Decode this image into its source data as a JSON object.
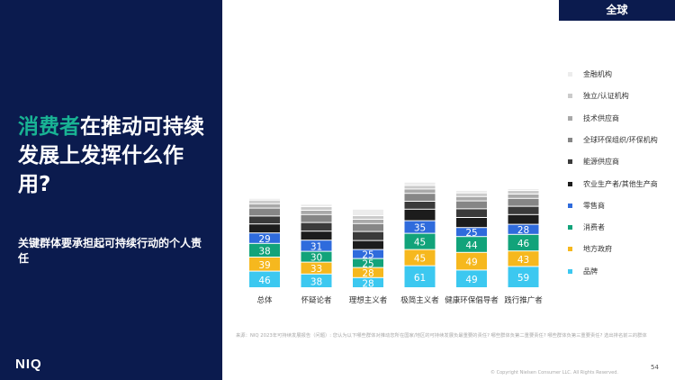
{
  "region": "全球",
  "title": {
    "accent": "消费者",
    "rest": "在推动可持续发展上发挥什么作用?"
  },
  "subtitle": "关键群体要承担起可持续行动的个人责任",
  "logo": "NIQ",
  "footnote": "来源：NIQ 2023年可持续发展报告（问题）: 您认为以下哪些群体对推动您所在国家/地区的可持续发展负最重要的责任? 哪些群体负第二重要责任? 哪些群体负第三重要责任? 选出排名前三的群体",
  "copyright": "© Copyright Nielsen Consumer LLC. All Rights Reserved.",
  "page_number": "54",
  "colors": {
    "brand_navy": "#0b1b4e",
    "accent_green": "#19b394",
    "segments": [
      "#3cc8f0",
      "#f6b81e",
      "#12a37a",
      "#2f6bdc",
      "#1c1c1c",
      "#3a3a3a",
      "#868686",
      "#a9a9a9",
      "#cbcbcb",
      "#ececec"
    ]
  },
  "chart_data": {
    "type": "bar",
    "stacked": true,
    "categories": [
      "总体",
      "怀疑论者",
      "理想主义者",
      "极简主义者",
      "健康环保倡导者",
      "践行推广者"
    ],
    "series": [
      {
        "name": "品牌",
        "values": [
          46,
          38,
          28,
          61,
          49,
          59
        ]
      },
      {
        "name": "地方政府",
        "values": [
          39,
          33,
          28,
          45,
          49,
          43
        ]
      },
      {
        "name": "消费者",
        "values": [
          38,
          30,
          25,
          45,
          44,
          46
        ]
      },
      {
        "name": "零售商",
        "values": [
          29,
          31,
          25,
          35,
          25,
          28
        ]
      },
      {
        "name": "农业生产者/其他生产商",
        "values": [
          25,
          25,
          25,
          32,
          28,
          27
        ]
      },
      {
        "name": "能源供应商",
        "values": [
          22,
          24,
          25,
          22,
          24,
          23
        ]
      },
      {
        "name": "全球环保组织/环保机构",
        "values": [
          22,
          22,
          22,
          22,
          22,
          22
        ]
      },
      {
        "name": "技术供应商",
        "values": [
          12,
          12,
          12,
          12,
          12,
          12
        ]
      },
      {
        "name": "独立/认证机构",
        "values": [
          10,
          10,
          10,
          10,
          10,
          10
        ]
      },
      {
        "name": "金融机构",
        "values": [
          5,
          7,
          18,
          9,
          7,
          5
        ]
      }
    ],
    "labeled_series_count": 4,
    "legend_placement": "right",
    "legend_order": [
      "金融机构",
      "独立/认证机构",
      "技术供应商",
      "全球环保组织/环保机构",
      "能源供应商",
      "农业生产者/其他生产商",
      "零售商",
      "消费者",
      "地方政府",
      "品牌"
    ]
  }
}
